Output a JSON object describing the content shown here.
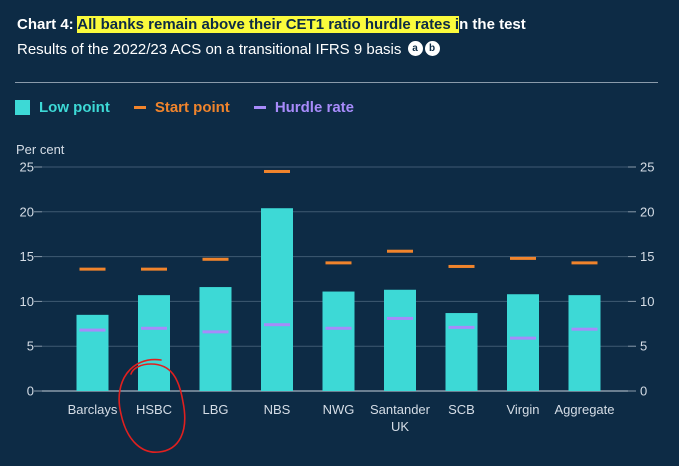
{
  "title": {
    "prefix": "Chart 4: ",
    "highlight": "All banks remain above their CET1 ratio hurdle rates i",
    "suffix": "n the test"
  },
  "subtitle": {
    "text": "Results of the 2022/23 ACS on a transitional IFRS 9 basis",
    "note_a": "a",
    "note_b": "b"
  },
  "colors": {
    "background": "#0d2b45",
    "low_point": "#3dd9d6",
    "start_point": "#f0842c",
    "hurdle_rate": "#a78bfa",
    "highlight": "#fbfb3c",
    "annotation_circle": "#e0201f"
  },
  "chart_data": {
    "type": "bar",
    "ylabel": "Per cent",
    "ylim": [
      0,
      25
    ],
    "yticks": [
      0,
      5,
      10,
      15,
      20,
      25
    ],
    "grid": true,
    "legend_position": "top-left",
    "categories": [
      "Barclays",
      "HSBC",
      "LBG",
      "NBS",
      "NWG",
      "Santander UK",
      "SCB",
      "Virgin",
      "Aggregate"
    ],
    "category_lines": [
      [
        "Barclays"
      ],
      [
        "HSBC"
      ],
      [
        "LBG"
      ],
      [
        "NBS"
      ],
      [
        "NWG"
      ],
      [
        "Santander",
        "UK"
      ],
      [
        "SCB"
      ],
      [
        "Virgin"
      ],
      [
        "Aggregate"
      ]
    ],
    "series": [
      {
        "name": "Low point",
        "style": "bar",
        "values": [
          8.5,
          10.7,
          11.6,
          20.4,
          11.1,
          11.3,
          8.7,
          10.8,
          10.7
        ]
      },
      {
        "name": "Start point",
        "style": "marker",
        "values": [
          13.6,
          13.6,
          14.7,
          24.5,
          14.3,
          15.6,
          13.9,
          14.8,
          14.3
        ]
      },
      {
        "name": "Hurdle rate",
        "style": "marker",
        "values": [
          6.8,
          7.0,
          6.6,
          7.4,
          7.0,
          8.1,
          7.1,
          5.9,
          6.9
        ]
      }
    ],
    "annotation": {
      "type": "hand-drawn circle",
      "target_category": "HSBC"
    }
  }
}
